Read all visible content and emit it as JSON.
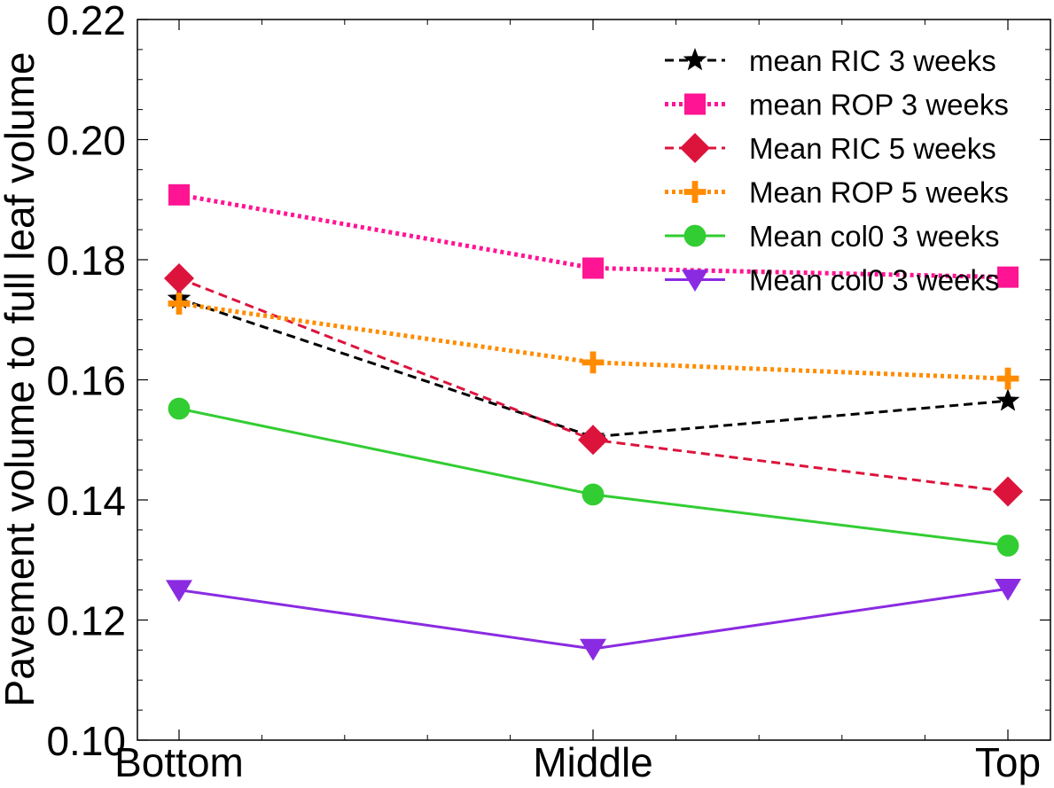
{
  "chart_data": {
    "type": "line",
    "title": "",
    "xlabel": "",
    "ylabel": "Pavement volume to full leaf volume",
    "categories": [
      "Bottom",
      "Middle",
      "Top"
    ],
    "ylim": [
      0.1,
      0.22
    ],
    "yticks": [
      "0.10",
      "0.12",
      "0.14",
      "0.16",
      "0.18",
      "0.20",
      "0.22"
    ],
    "legend_position": "top-right",
    "grid": false,
    "series": [
      {
        "name": "mean RIC 3 weeks",
        "values": [
          0.1735,
          0.1505,
          0.1565
        ],
        "color": "#000000",
        "dash": "dashed",
        "marker": "star"
      },
      {
        "name": "mean ROP 3 weeks",
        "values": [
          0.1908,
          0.1786,
          0.1771
        ],
        "color": "#ff1493",
        "dash": "dotted",
        "marker": "square"
      },
      {
        "name": "Mean RIC 5 weeks",
        "values": [
          0.1769,
          0.15,
          0.1414
        ],
        "color": "#dc143c",
        "dash": "dashed",
        "marker": "diamond"
      },
      {
        "name": "Mean ROP 5 weeks",
        "values": [
          0.1727,
          0.1629,
          0.1602
        ],
        "color": "#ff8c00",
        "dash": "dotted",
        "marker": "plus"
      },
      {
        "name": "Mean col0 3 weeks",
        "values": [
          0.1552,
          0.1409,
          0.1324
        ],
        "color": "#32cd32",
        "dash": "solid",
        "marker": "circle"
      },
      {
        "name": "Mean col0 3 weeks",
        "values": [
          0.125,
          0.1152,
          0.1252
        ],
        "color": "#8a2be2",
        "dash": "solid",
        "marker": "triangle-down"
      }
    ]
  }
}
